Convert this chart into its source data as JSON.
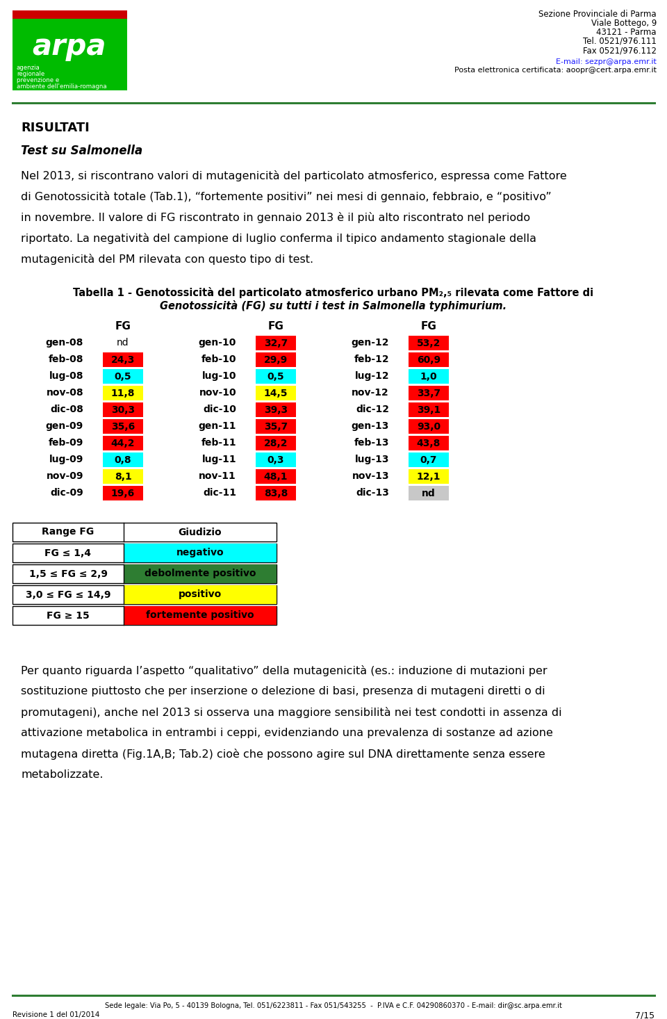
{
  "header_right_lines": [
    "Sezione Provinciale di Parma",
    "Viale Bottego, 9",
    "43121 - Parma",
    "Tel. 0521/976.111",
    "Fax 0521/976.112"
  ],
  "header_email1": "E-mail: sezpr@arpa.emr.it",
  "header_email2": "Posta elettronica certificata: aoopr@cert.arpa.emr.it",
  "title1": "RISULTATI",
  "title2": "Test su Salmonella",
  "para1_lines": [
    "Nel 2013, si riscontrano valori di mutagenicità del particolato atmosferico, espressa come Fattore",
    "di Genotossicità totale (Tab.1), “fortemente positivi” nei mesi di gennaio, febbraio, e “positivo”",
    "in novembre. Il valore di FG riscontrato in gennaio 2013 è il più alto riscontrato nel periodo",
    "riportato. La negatività del campione di luglio conferma il tipico andamento stagionale della",
    "mutagenicità del PM rilevata con questo tipo di test."
  ],
  "table_title_line1": "Tabella 1 - Genotossicità del particolato atmosferico urbano PM₂,₅ rilevata come Fattore di",
  "table_title_line2": "Genotossicità (FG) su tutti i test in ​Salmonella typhimurium​.",
  "table_title_line2_italic_part": "Salmonella typhimurium",
  "table_data": {
    "col1": [
      {
        "label": "gen-08",
        "value": "nd",
        "color": "none"
      },
      {
        "label": "feb-08",
        "value": "24,3",
        "color": "red"
      },
      {
        "label": "lug-08",
        "value": "0,5",
        "color": "cyan"
      },
      {
        "label": "nov-08",
        "value": "11,8",
        "color": "yellow"
      },
      {
        "label": "dic-08",
        "value": "30,3",
        "color": "red"
      },
      {
        "label": "gen-09",
        "value": "35,6",
        "color": "red"
      },
      {
        "label": "feb-09",
        "value": "44,2",
        "color": "red"
      },
      {
        "label": "lug-09",
        "value": "0,8",
        "color": "cyan"
      },
      {
        "label": "nov-09",
        "value": "8,1",
        "color": "yellow"
      },
      {
        "label": "dic-09",
        "value": "19,6",
        "color": "red"
      }
    ],
    "col2": [
      {
        "label": "gen-10",
        "value": "32,7",
        "color": "red"
      },
      {
        "label": "feb-10",
        "value": "29,9",
        "color": "red"
      },
      {
        "label": "lug-10",
        "value": "0,5",
        "color": "cyan"
      },
      {
        "label": "nov-10",
        "value": "14,5",
        "color": "yellow"
      },
      {
        "label": "dic-10",
        "value": "39,3",
        "color": "red"
      },
      {
        "label": "gen-11",
        "value": "35,7",
        "color": "red"
      },
      {
        "label": "feb-11",
        "value": "28,2",
        "color": "red"
      },
      {
        "label": "lug-11",
        "value": "0,3",
        "color": "cyan"
      },
      {
        "label": "nov-11",
        "value": "48,1",
        "color": "red"
      },
      {
        "label": "dic-11",
        "value": "83,8",
        "color": "red"
      }
    ],
    "col3": [
      {
        "label": "gen-12",
        "value": "53,2",
        "color": "red"
      },
      {
        "label": "feb-12",
        "value": "60,9",
        "color": "red"
      },
      {
        "label": "lug-12",
        "value": "1,0",
        "color": "cyan"
      },
      {
        "label": "nov-12",
        "value": "33,7",
        "color": "red"
      },
      {
        "label": "dic-12",
        "value": "39,1",
        "color": "red"
      },
      {
        "label": "gen-13",
        "value": "93,0",
        "color": "red"
      },
      {
        "label": "feb-13",
        "value": "43,8",
        "color": "red"
      },
      {
        "label": "lug-13",
        "value": "0,7",
        "color": "cyan"
      },
      {
        "label": "nov-13",
        "value": "12,1",
        "color": "yellow"
      },
      {
        "label": "dic-13",
        "value": "nd",
        "color": "lightgray"
      }
    ]
  },
  "legend_table": [
    {
      "range": "Range FG",
      "giudizio": "Giudizio",
      "color": "none",
      "header": true
    },
    {
      "range": "FG ≤ 1,4",
      "giudizio": "negativo",
      "color": "cyan"
    },
    {
      "range": "1,5 ≤ FG ≤ 2,9",
      "giudizio": "debolmente positivo",
      "color": "dkgreen"
    },
    {
      "range": "3,0 ≤ FG ≤ 14,9",
      "giudizio": "positivo",
      "color": "yellow"
    },
    {
      "range": "FG ≥ 15",
      "giudizio": "fortemente positivo",
      "color": "red"
    }
  ],
  "para2_lines": [
    "Per quanto riguarda l’aspetto “qualitativo” della mutagenicità (es.: induzione di mutazioni per",
    "sostituzione piuttosto che per inserzione o delezione di basi, presenza di mutageni diretti o di",
    "promutageni), anche nel 2013 si osserva una maggiore sensibilità nei test condotti in assenza di",
    "attivazione metabolica in entrambi i ceppi, evidenziando una prevalenza di sostanze ad azione",
    "mutagena diretta (Fig.1A,B; Tab.2) cioè che possono agire sul DNA direttamente senza essere",
    "metabolizzate."
  ],
  "footer_center": "Sede legale: Via Po, 5 - 40139 Bologna, Tel. 051/6223811 - Fax 051/543255  -  P.IVA e C.F. 04290860370 - E-mail: dir@sc.arpa.emr.it",
  "footer_left": "Revisione 1 del 01/2014",
  "footer_right": "7/15",
  "color_map": {
    "red": "#ff0000",
    "cyan": "#00ffff",
    "yellow": "#ffff00",
    "lightgray": "#c8c8c8",
    "dkgreen": "#2e7d32",
    "none": null
  }
}
